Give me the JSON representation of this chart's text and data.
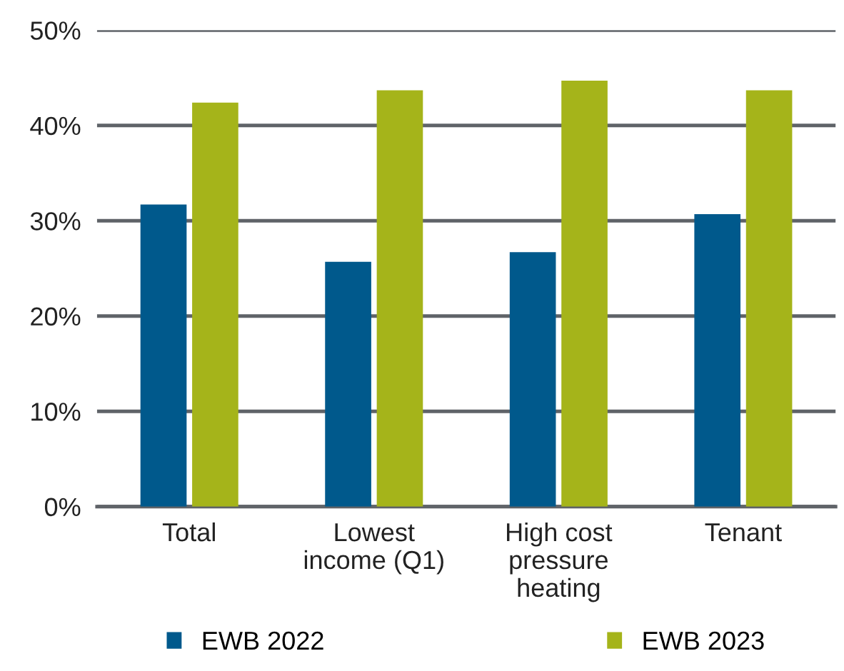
{
  "chart_data": {
    "type": "bar",
    "categories": [
      "Total",
      "Lowest\nincome (Q1)",
      "High cost\npressure\nheating",
      "Tenant"
    ],
    "series": [
      {
        "name": "EWB 2022",
        "color": "#00598c",
        "values": [
          31.7,
          25.7,
          26.7,
          30.7
        ]
      },
      {
        "name": "EWB 2023",
        "color": "#a5b41a",
        "values": [
          42.4,
          43.7,
          44.7,
          43.7
        ]
      }
    ],
    "ylim": [
      0,
      50
    ],
    "yticks": [
      {
        "value": 0,
        "label": "0%"
      },
      {
        "value": 10,
        "label": "10%"
      },
      {
        "value": 20,
        "label": "20%"
      },
      {
        "value": 30,
        "label": "30%"
      },
      {
        "value": 40,
        "label": "40%"
      },
      {
        "value": 50,
        "label": "50%"
      }
    ],
    "grid": "y",
    "legend": "bottom"
  }
}
